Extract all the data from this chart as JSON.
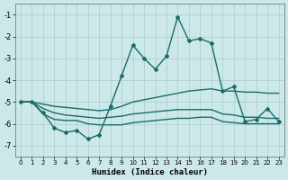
{
  "xlabel": "Humidex (Indice chaleur)",
  "xlim": [
    -0.5,
    23.5
  ],
  "ylim": [
    -7.5,
    -0.5
  ],
  "yticks": [
    -7,
    -6,
    -5,
    -4,
    -3,
    -2,
    -1
  ],
  "xticks": [
    0,
    1,
    2,
    3,
    4,
    5,
    6,
    7,
    8,
    9,
    10,
    11,
    12,
    13,
    14,
    15,
    16,
    17,
    18,
    19,
    20,
    21,
    22,
    23
  ],
  "bg_color": "#cce8e8",
  "grid_color": "#aacccc",
  "line_color": "#1a6b6b",
  "lines": [
    {
      "x": [
        0,
        1,
        2,
        3,
        4,
        5,
        6,
        7,
        8,
        9,
        10,
        11,
        12,
        13,
        14,
        15,
        16,
        17,
        18,
        19,
        20,
        21,
        22,
        23
      ],
      "y": [
        -5.0,
        -5.0,
        -5.5,
        -6.2,
        -6.4,
        -6.3,
        -6.7,
        -6.5,
        -5.2,
        -3.8,
        -2.4,
        -3.0,
        -3.5,
        -2.9,
        -1.1,
        -2.2,
        -2.1,
        -2.3,
        -4.5,
        -4.3,
        -5.9,
        -5.8,
        -5.3,
        -5.9
      ],
      "marker": "D",
      "markersize": 2.0,
      "linewidth": 1.0
    },
    {
      "x": [
        0,
        1,
        2,
        3,
        4,
        5,
        6,
        7,
        8,
        9,
        10,
        11,
        12,
        13,
        14,
        15,
        16,
        17,
        18,
        19,
        20,
        21,
        22,
        23
      ],
      "y": [
        -5.0,
        -5.0,
        -5.1,
        -5.2,
        -5.25,
        -5.3,
        -5.35,
        -5.4,
        -5.35,
        -5.2,
        -5.0,
        -4.9,
        -4.8,
        -4.7,
        -4.6,
        -4.5,
        -4.45,
        -4.4,
        -4.5,
        -4.5,
        -4.55,
        -4.55,
        -4.6,
        -4.6
      ],
      "marker": null,
      "markersize": 0,
      "linewidth": 1.0
    },
    {
      "x": [
        0,
        1,
        2,
        3,
        4,
        5,
        6,
        7,
        8,
        9,
        10,
        11,
        12,
        13,
        14,
        15,
        16,
        17,
        18,
        19,
        20,
        21,
        22,
        23
      ],
      "y": [
        -5.0,
        -5.0,
        -5.3,
        -5.5,
        -5.6,
        -5.65,
        -5.7,
        -5.75,
        -5.7,
        -5.65,
        -5.55,
        -5.5,
        -5.45,
        -5.4,
        -5.35,
        -5.35,
        -5.35,
        -5.35,
        -5.55,
        -5.6,
        -5.7,
        -5.7,
        -5.75,
        -5.75
      ],
      "marker": null,
      "markersize": 0,
      "linewidth": 1.0
    },
    {
      "x": [
        0,
        1,
        2,
        3,
        4,
        5,
        6,
        7,
        8,
        9,
        10,
        11,
        12,
        13,
        14,
        15,
        16,
        17,
        18,
        19,
        20,
        21,
        22,
        23
      ],
      "y": [
        -5.0,
        -5.0,
        -5.55,
        -5.8,
        -5.85,
        -5.85,
        -6.0,
        -6.05,
        -6.05,
        -6.05,
        -5.95,
        -5.9,
        -5.85,
        -5.8,
        -5.75,
        -5.75,
        -5.7,
        -5.7,
        -5.9,
        -5.95,
        -6.0,
        -6.0,
        -6.0,
        -6.0
      ],
      "marker": null,
      "markersize": 0,
      "linewidth": 1.0
    }
  ]
}
